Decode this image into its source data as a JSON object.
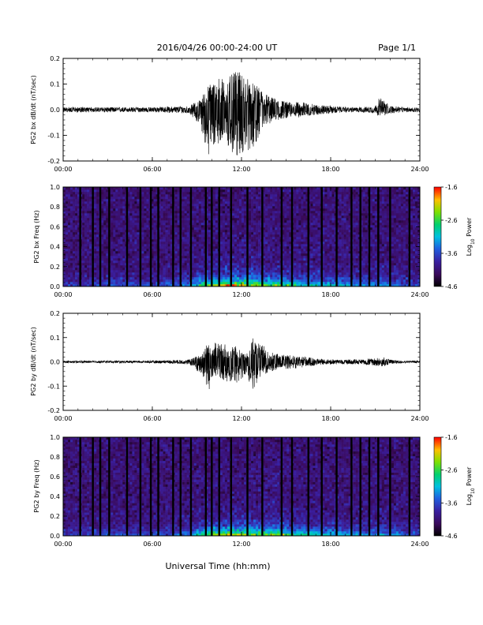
{
  "header": {
    "title": "2016/04/26  00:00-24:00 UT",
    "page": "Page 1/1"
  },
  "footer": {
    "xlabel": "Universal Time (hh:mm)"
  },
  "chart_data": [
    {
      "type": "line",
      "ylabel": "PG2 bx dB/dt (nT/sec)",
      "ylim": [
        -0.2,
        0.2
      ],
      "yticks": [
        "-0.2",
        "-0.1",
        "0.0",
        "0.1",
        "0.2"
      ],
      "xlim": [
        0,
        24
      ],
      "xticks": [
        "00:00",
        "06:00",
        "12:00",
        "18:00",
        "24:00"
      ],
      "series": [
        {
          "envelope_hours": [
            0,
            3,
            6,
            8.5,
            9.2,
            9.8,
            10.4,
            11.0,
            11.6,
            12.2,
            12.8,
            13.4,
            14.0,
            14.6,
            15.2,
            16.0,
            17.0,
            18.0,
            19.0,
            20.0,
            21.0,
            21.3,
            21.6,
            22.0,
            23.0,
            24.0
          ],
          "envelope_upper": [
            0.01,
            0.01,
            0.01,
            0.015,
            0.04,
            0.1,
            0.13,
            0.12,
            0.15,
            0.14,
            0.1,
            0.08,
            0.05,
            0.04,
            0.03,
            0.03,
            0.02,
            0.015,
            0.01,
            0.01,
            0.015,
            0.05,
            0.035,
            0.015,
            0.01,
            0.01
          ],
          "envelope_lower": [
            -0.01,
            -0.01,
            -0.01,
            -0.015,
            -0.06,
            -0.19,
            -0.13,
            -0.16,
            -0.19,
            -0.17,
            -0.15,
            -0.08,
            -0.05,
            -0.04,
            -0.03,
            -0.03,
            -0.02,
            -0.015,
            -0.01,
            -0.01,
            -0.015,
            -0.03,
            -0.03,
            -0.015,
            -0.01,
            -0.01
          ]
        }
      ]
    },
    {
      "type": "heatmap",
      "ylabel": "PG2 bx Freq (Hz)",
      "ylim": [
        0,
        1
      ],
      "yticks": [
        "0.0",
        "0.2",
        "0.4",
        "0.6",
        "0.8",
        "1.0"
      ],
      "xlim": [
        0,
        24
      ],
      "xticks": [
        "00:00",
        "06:00",
        "12:00",
        "18:00",
        "24:00"
      ],
      "colorbar": {
        "label": "Log10 Power",
        "ticks": [
          "-1.6",
          "-2.6",
          "-3.6",
          "-4.6"
        ],
        "range": [
          -4.6,
          -1.6
        ]
      },
      "activity_hours": [
        0,
        3,
        6,
        8.5,
        9.5,
        10.5,
        11.5,
        12.5,
        13.5,
        14.5,
        15.5,
        17,
        18.5,
        20,
        21.5,
        23,
        24
      ],
      "activity_level": [
        0.15,
        0.25,
        0.2,
        0.35,
        0.7,
        0.8,
        0.9,
        0.85,
        0.8,
        0.7,
        0.6,
        0.5,
        0.45,
        0.35,
        0.4,
        0.25,
        0.2
      ],
      "dropout_hours": [
        1.15,
        2.0,
        2.5,
        3.1,
        4.3,
        5.2,
        5.9,
        6.4,
        7.4,
        7.9,
        8.6,
        9.6,
        10.0,
        10.5,
        11.3,
        12.4,
        13.4,
        14.7,
        15.4,
        16.5,
        17.4,
        18.4,
        19.4,
        20.0,
        20.6,
        21.2,
        22.0,
        23.3
      ]
    },
    {
      "type": "line",
      "ylabel": "PG2 by dB/dt (nT/sec)",
      "ylim": [
        -0.2,
        0.2
      ],
      "yticks": [
        "-0.2",
        "-0.1",
        "0.0",
        "0.1",
        "0.2"
      ],
      "xlim": [
        0,
        24
      ],
      "xticks": [
        "00:00",
        "06:00",
        "12:00",
        "18:00",
        "24:00"
      ],
      "series": [
        {
          "envelope_hours": [
            0,
            3,
            6,
            8.5,
            9.2,
            9.8,
            10.4,
            11.0,
            11.6,
            12.2,
            12.8,
            13.4,
            14.0,
            14.6,
            15.2,
            16.0,
            17.0,
            18.0,
            19.0,
            20.0,
            21.0,
            21.5,
            22.0,
            23.0,
            24.0
          ],
          "envelope_upper": [
            0.005,
            0.005,
            0.005,
            0.01,
            0.03,
            0.09,
            0.08,
            0.07,
            0.07,
            0.03,
            0.1,
            0.07,
            0.04,
            0.03,
            0.03,
            0.025,
            0.015,
            0.01,
            0.01,
            0.01,
            0.015,
            0.02,
            0.01,
            0.005,
            0.005
          ],
          "envelope_lower": [
            -0.005,
            -0.005,
            -0.005,
            -0.01,
            -0.05,
            -0.12,
            -0.07,
            -0.08,
            -0.09,
            -0.06,
            -0.12,
            -0.06,
            -0.04,
            -0.03,
            -0.03,
            -0.025,
            -0.015,
            -0.01,
            -0.01,
            -0.01,
            -0.015,
            -0.02,
            -0.01,
            -0.005,
            -0.005
          ]
        }
      ]
    },
    {
      "type": "heatmap",
      "ylabel": "PG2 by Freq (Hz)",
      "ylim": [
        0,
        1
      ],
      "yticks": [
        "0.0",
        "0.2",
        "0.4",
        "0.6",
        "0.8",
        "1.0"
      ],
      "xlim": [
        0,
        24
      ],
      "xticks": [
        "00:00",
        "06:00",
        "12:00",
        "18:00",
        "24:00"
      ],
      "colorbar": {
        "label": "Log10 Power",
        "ticks": [
          "-1.6",
          "-2.6",
          "-3.6",
          "-4.6"
        ],
        "range": [
          -4.6,
          -1.6
        ]
      },
      "activity_hours": [
        0,
        3,
        6,
        8.5,
        9.5,
        10.5,
        11.5,
        12.5,
        13.5,
        14.5,
        15.5,
        17,
        18.5,
        20,
        21.5,
        23,
        24
      ],
      "activity_level": [
        0.15,
        0.25,
        0.2,
        0.3,
        0.65,
        0.8,
        0.85,
        0.8,
        0.75,
        0.75,
        0.6,
        0.5,
        0.45,
        0.35,
        0.4,
        0.25,
        0.2
      ],
      "dropout_hours": [
        1.15,
        2.0,
        2.5,
        3.1,
        4.3,
        5.2,
        5.9,
        6.4,
        7.4,
        7.9,
        8.6,
        9.6,
        10.0,
        10.5,
        11.3,
        12.4,
        13.4,
        14.7,
        15.4,
        16.5,
        17.4,
        18.4,
        19.4,
        20.0,
        20.6,
        21.2,
        22.0,
        23.3
      ]
    }
  ]
}
